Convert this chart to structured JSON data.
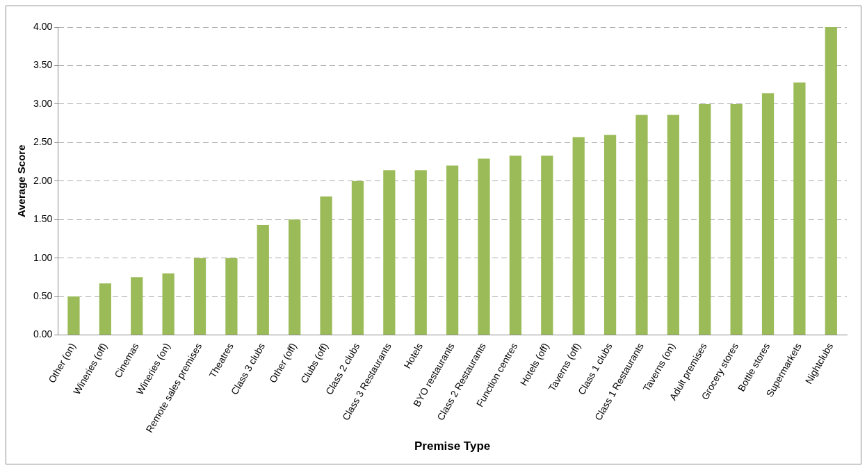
{
  "chart_data": {
    "type": "bar",
    "xlabel": "Premise Type",
    "ylabel": "Average Score",
    "categories": [
      "Other (on)",
      "Wineries (off)",
      "Cinemas",
      "Wineries (on)",
      "Remote sales premises",
      "Theatres",
      "Class 3 clubs",
      "Other (off)",
      "Clubs (off)",
      "Class 2 clubs",
      "Class 3 Restaurants",
      "Hotels",
      "BYO restaurants",
      "Class 2 Restaurants",
      "Function centres",
      "Hotels (off)",
      "Taverns (off)",
      "Class 1 clubs",
      "Class 1 Restaurants",
      "Taverns (on)",
      "Adult premises",
      "Grocery stores",
      "Bottle stores",
      "Supermarkets",
      "Nightclubs"
    ],
    "values": [
      0.5,
      0.67,
      0.75,
      0.8,
      1.0,
      1.0,
      1.43,
      1.5,
      1.8,
      2.0,
      2.14,
      2.14,
      2.2,
      2.29,
      2.33,
      2.33,
      2.57,
      2.6,
      2.86,
      2.86,
      3.0,
      3.0,
      3.14,
      3.28,
      4.0
    ],
    "color": "#9bbb59",
    "ylim": [
      0,
      4
    ],
    "yticks": [
      {
        "value": 0,
        "label": "0.00"
      },
      {
        "value": 0.5,
        "label": "0.50"
      },
      {
        "value": 1,
        "label": "1.00"
      },
      {
        "value": 1.5,
        "label": "1.50"
      },
      {
        "value": 2,
        "label": "2.00"
      },
      {
        "value": 2.5,
        "label": "2.50"
      },
      {
        "value": 3,
        "label": "3.00"
      },
      {
        "value": 3.5,
        "label": "3.50"
      },
      {
        "value": 4,
        "label": "4.00"
      }
    ],
    "grid": "y",
    "legend": false
  }
}
